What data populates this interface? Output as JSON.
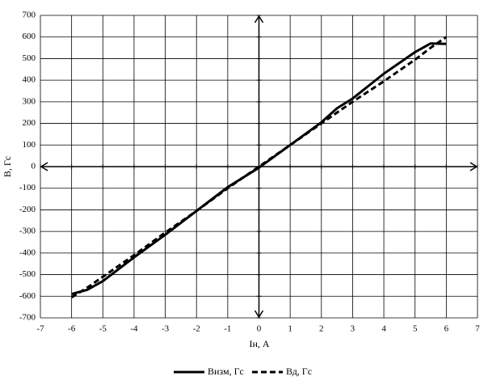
{
  "chart_data": {
    "type": "line",
    "x_label": "Iн, А",
    "y_label": "B, Гс",
    "x": [
      -6,
      -5.5,
      -5,
      -4,
      -3,
      -2,
      -1,
      0,
      1,
      2,
      2.5,
      3,
      4,
      5,
      5.5,
      6
    ],
    "series": [
      {
        "name": "Визм, Гс",
        "color": "#000000",
        "dash": "solid",
        "values": [
          -590,
          -570,
          -530,
          -420,
          -315,
          -205,
          -95,
          -5,
          100,
          205,
          270,
          315,
          430,
          530,
          570,
          568
        ]
      },
      {
        "name": "Вд, Гс",
        "color": "#000000",
        "dash": "dashed",
        "values": [
          -605,
          -560,
          -510,
          -410,
          -305,
          -205,
          -100,
          0,
          100,
          200,
          250,
          300,
          395,
          495,
          550,
          600
        ]
      }
    ],
    "xlim": [
      -7,
      7
    ],
    "xticks": [
      -7,
      -6,
      -5,
      -4,
      -3,
      -2,
      -1,
      0,
      1,
      2,
      3,
      4,
      5,
      6,
      7
    ],
    "ylim": [
      -700,
      700
    ],
    "yticks": [
      -700,
      -600,
      -500,
      -400,
      -300,
      -200,
      -100,
      0,
      100,
      200,
      300,
      400,
      500,
      600,
      700
    ],
    "grid": true,
    "legend": "bottom"
  }
}
